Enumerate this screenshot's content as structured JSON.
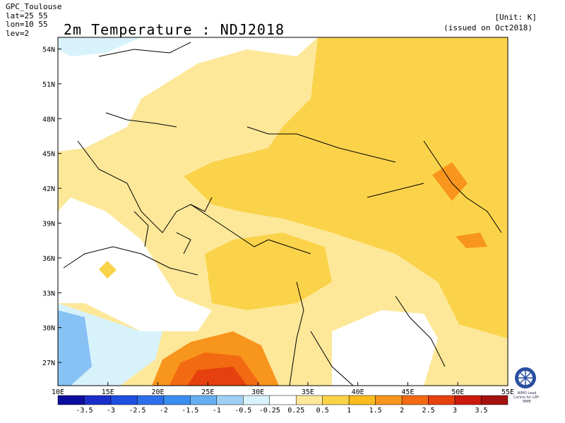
{
  "header": {
    "center": "GPC_Toulouse",
    "lat": "lat=25 55",
    "lon": "lon=10 55",
    "lev": "lev=2",
    "title": "2m Temperature : NDJ2018",
    "unit": "[Unit: K]",
    "issued": "(issued on Oct2018)"
  },
  "map": {
    "lon_range": [
      10,
      55
    ],
    "lat_range": [
      25,
      55
    ],
    "lat_ticks": [
      "54N",
      "51N",
      "48N",
      "45N",
      "42N",
      "39N",
      "36N",
      "33N",
      "30N",
      "27N"
    ],
    "lon_ticks": [
      "10E",
      "15E",
      "20E",
      "25E",
      "30E",
      "35E",
      "40E",
      "45E",
      "50E",
      "55E"
    ]
  },
  "legend": {
    "labels": [
      "-3.5",
      "-3",
      "-2.5",
      "-2",
      "-1.5",
      "-1",
      "-0.5",
      "-0.25",
      "0.25",
      "0.5",
      "1",
      "1.5",
      "2",
      "2.5",
      "3",
      "3.5"
    ],
    "colors": [
      "#0c0c9c",
      "#1b2fc8",
      "#1f4ee0",
      "#2d6fe8",
      "#3a8ef0",
      "#66aef2",
      "#9fd0f4",
      "#d8f2fb",
      "#ffffff",
      "#fde89a",
      "#fbd34a",
      "#f9bb1d",
      "#f8951c",
      "#f26a12",
      "#e6400e",
      "#cc1a0a",
      "#a51010"
    ]
  },
  "logo": {
    "text": "WMO Lead Centre for LRF-MME"
  }
}
